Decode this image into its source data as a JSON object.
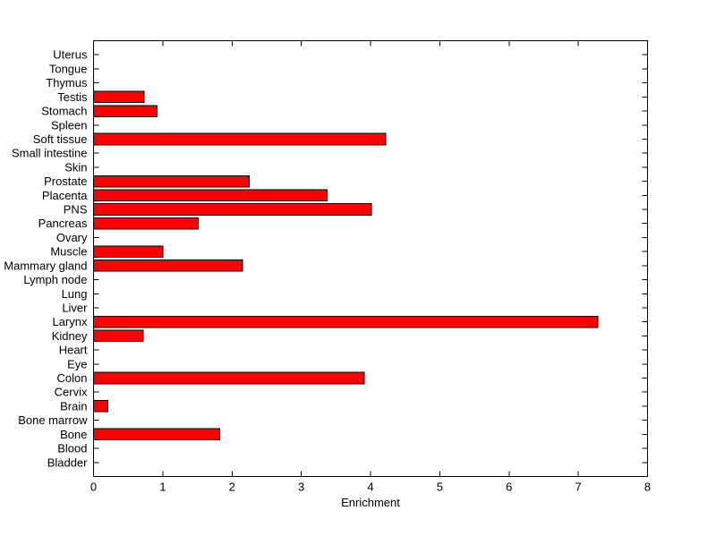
{
  "figure": {
    "background": "#ffffff"
  },
  "chart_data": {
    "type": "bar",
    "orientation": "horizontal",
    "title": "",
    "xlabel": "Enrichment",
    "ylabel": "",
    "xlim": [
      0,
      8
    ],
    "ylim": [
      0,
      31
    ],
    "xticks": [
      0,
      1,
      2,
      3,
      4,
      5,
      6,
      7,
      8
    ],
    "grid": false,
    "legend_position": "none",
    "bar_color": "#ff0000",
    "bar_edge_color": "#000000",
    "axis_color": "#000000",
    "categories": [
      "Uterus",
      "Tongue",
      "Thymus",
      "Testis",
      "Stomach",
      "Spleen",
      "Soft tissue",
      "Small intestine",
      "Skin",
      "Prostate",
      "Placenta",
      "PNS",
      "Pancreas",
      "Ovary",
      "Muscle",
      "Mammary gland",
      "Lymph node",
      "Lung",
      "Liver",
      "Larynx",
      "Kidney",
      "Heart",
      "Eye",
      "Colon",
      "Cervix",
      "Brain",
      "Bone marrow",
      "Bone",
      "Blood",
      "Bladder"
    ],
    "values": [
      0,
      0,
      0,
      0.73,
      0.92,
      0,
      4.22,
      0,
      0,
      2.25,
      3.37,
      4.01,
      1.51,
      0,
      1.0,
      2.15,
      0,
      0,
      0,
      7.28,
      0.72,
      0,
      0,
      3.91,
      0,
      0.21,
      0,
      1.82,
      0,
      0
    ],
    "categories_order": "top-to-bottom"
  }
}
